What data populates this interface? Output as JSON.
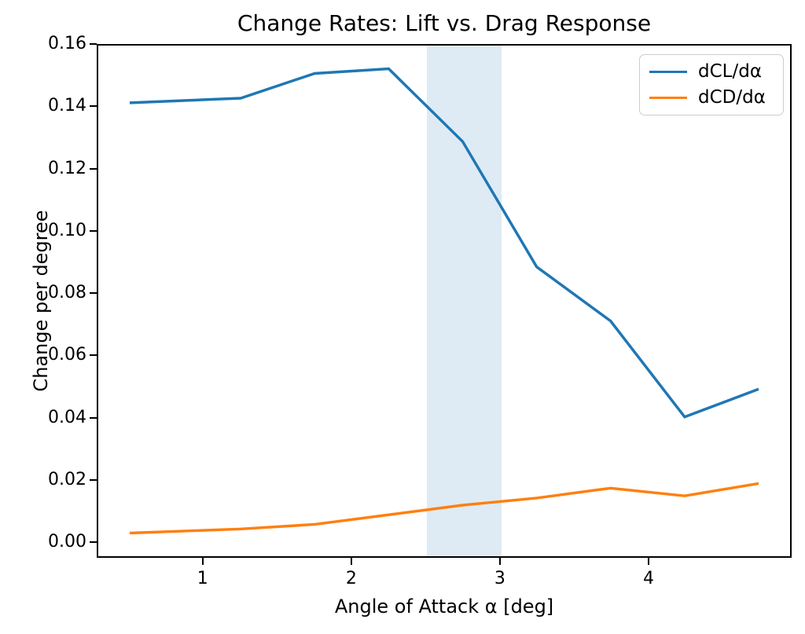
{
  "chart_data": {
    "type": "line",
    "title": "Change Rates: Lift vs. Drag Response",
    "xlabel": "Angle of Attack α [deg]",
    "ylabel": "Change per degree",
    "x": [
      0.5,
      1.25,
      1.75,
      2.25,
      2.75,
      3.25,
      3.75,
      4.25,
      4.75
    ],
    "series": [
      {
        "name": "dCL/dα",
        "color": "#1f77b4",
        "values": [
          0.1415,
          0.143,
          0.151,
          0.1525,
          0.129,
          0.0885,
          0.071,
          0.04,
          0.049
        ]
      },
      {
        "name": "dCD/dα",
        "color": "#ff7f0e",
        "values": [
          0.0025,
          0.0038,
          0.0053,
          0.0084,
          0.0115,
          0.0138,
          0.017,
          0.0145,
          0.0185
        ]
      }
    ],
    "xlim": [
      0.2875,
      4.9625
    ],
    "ylim": [
      -0.005,
      0.16
    ],
    "xticks": [
      "1",
      "2",
      "3",
      "4"
    ],
    "yticks": [
      "0.00",
      "0.02",
      "0.04",
      "0.06",
      "0.08",
      "0.10",
      "0.12",
      "0.14",
      "0.16"
    ],
    "shaded_band": {
      "x0": 2.5,
      "x1": 3.0,
      "color": "#1f77b4",
      "opacity": 0.15
    },
    "legend_position": "upper right",
    "grid": false,
    "background": "#ffffff",
    "line_width": 3.5
  }
}
